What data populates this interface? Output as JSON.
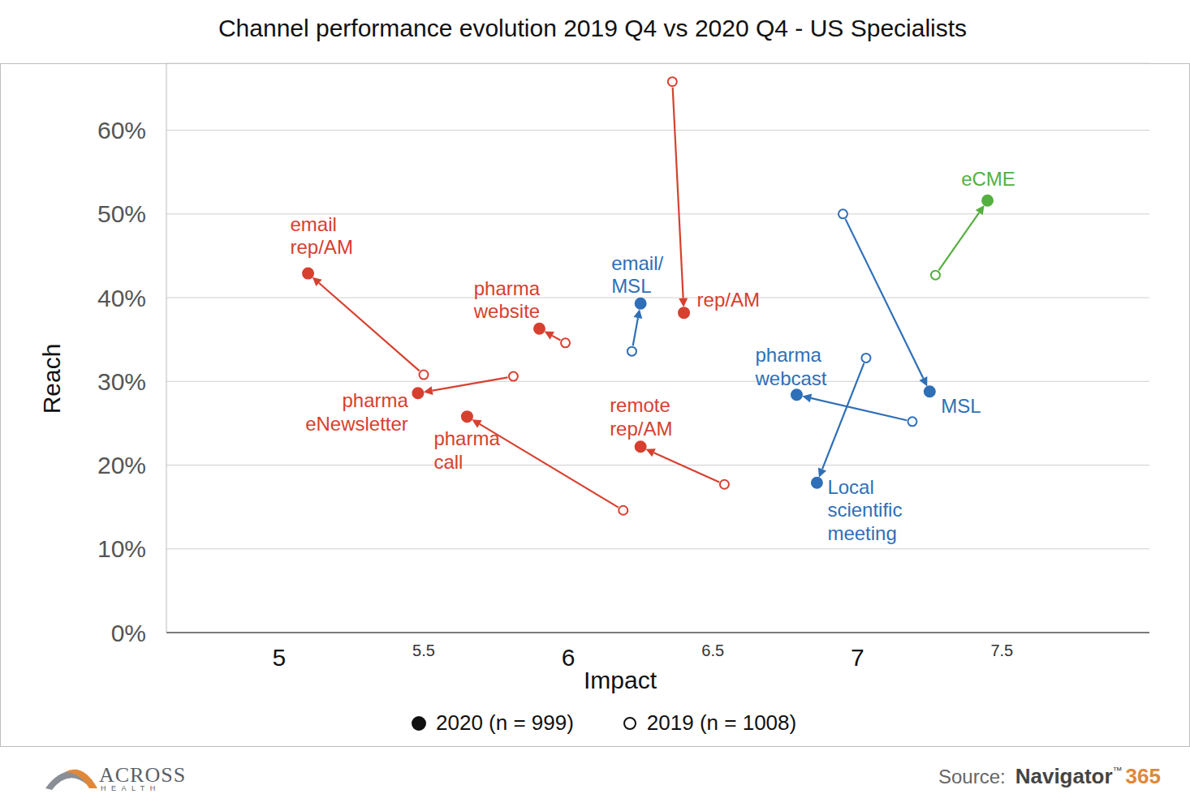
{
  "chart_data": {
    "type": "scatter",
    "title": "Channel performance evolution 2019 Q4 vs 2020 Q4 - US Specialists",
    "x_label": "Impact",
    "y_label": "Reach",
    "xlim": [
      4.61,
      8.01
    ],
    "xticks": [
      5,
      5.5,
      6,
      6.5,
      7,
      7.5
    ],
    "ylim": [
      0,
      68
    ],
    "yticks": [
      {
        "value": 0,
        "label": "0%"
      },
      {
        "value": 10,
        "label": "10%"
      },
      {
        "value": 20,
        "label": "20%"
      },
      {
        "value": 30,
        "label": "30%"
      },
      {
        "value": 40,
        "label": "40%"
      },
      {
        "value": 50,
        "label": "50%"
      },
      {
        "value": 60,
        "label": "60%"
      }
    ],
    "grid": true,
    "categories": [
      "email\nrep/AM",
      "pharma\neNewsletter",
      "pharma\nwebsite",
      "pharma\ncall",
      "remote\nrep/AM",
      "rep/AM",
      "email/\nMSL",
      "pharma\nwebcast",
      "Local\nscientific\nmeeting",
      "MSL",
      "eCME"
    ],
    "colors": [
      "#d7402f",
      "#d7402f",
      "#d7402f",
      "#d7402f",
      "#d7402f",
      "#d7402f",
      "#2f6fb7",
      "#2f6fb7",
      "#2f6fb7",
      "#2f6fb7",
      "#55b03f"
    ],
    "series": [
      {
        "name": "2020 (n = 999)",
        "marker": "filled_circle",
        "x": [
          5.1,
          5.48,
          5.9,
          5.65,
          6.25,
          6.4,
          6.25,
          6.79,
          6.86,
          7.25,
          7.45
        ],
        "values": [
          42.9,
          28.6,
          36.3,
          25.8,
          22.2,
          38.2,
          39.3,
          28.4,
          17.9,
          28.8,
          51.6
        ]
      },
      {
        "name": "2019 (n = 1008)",
        "marker": "open_circle",
        "x": [
          5.5,
          5.81,
          5.99,
          6.19,
          6.54,
          6.36,
          6.22,
          7.19,
          7.03,
          6.95,
          7.27
        ],
        "values": [
          30.8,
          30.6,
          34.6,
          14.6,
          17.7,
          65.8,
          33.6,
          25.2,
          32.8,
          50.0,
          42.7
        ]
      }
    ],
    "source": "Source:",
    "source_name": "Navigator",
    "source_mark": "™",
    "source_number": "365",
    "logo": [
      "ACROSS",
      "HEALTH"
    ]
  }
}
